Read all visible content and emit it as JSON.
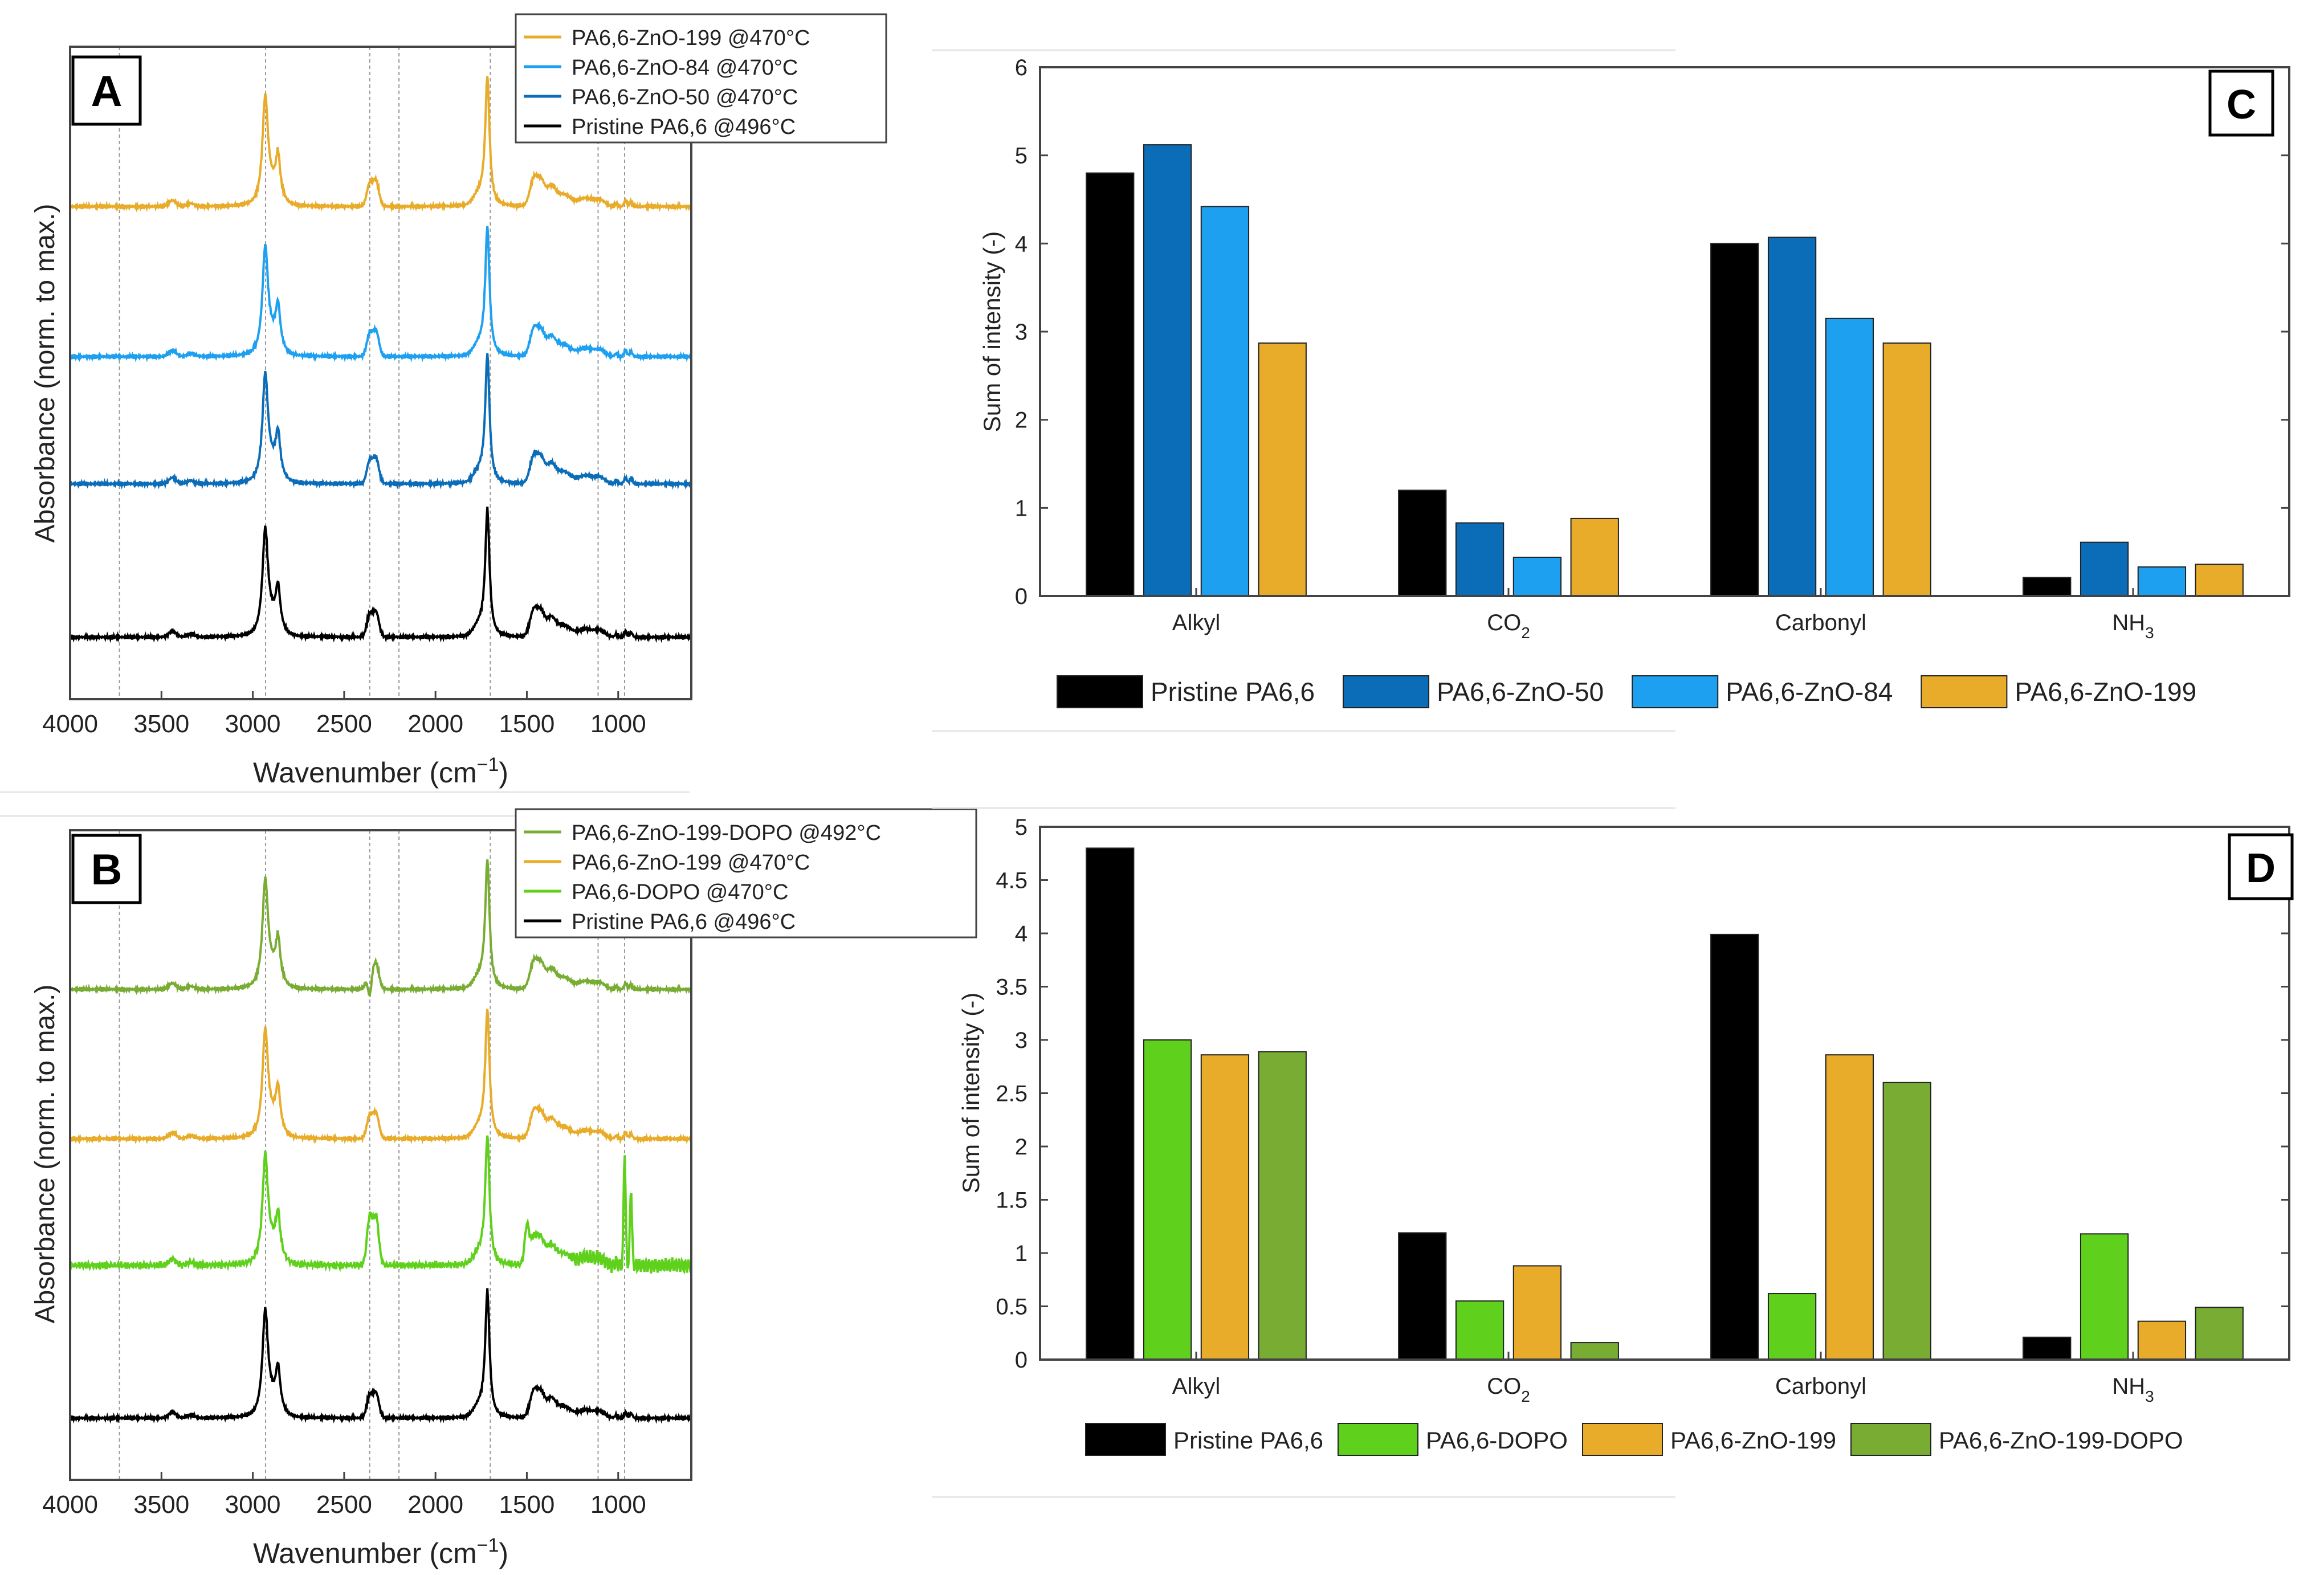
{
  "colors": {
    "black": "#000000",
    "dark_blue": "#0b6cb8",
    "light_blue": "#1ea0f0",
    "orange": "#e8ac2a",
    "bright_green": "#5fd11c",
    "olive_green": "#78ac33",
    "axis": "#444444",
    "guide": "#9a9a9a"
  },
  "chart_data": [
    {
      "panel": "A",
      "type": "line",
      "xlabel": "Wavenumber (cm",
      "xlabel_sup": "−1",
      "xlabel_end": ")",
      "ylabel": "Absorbance (norm. to max.)",
      "xlim": [
        4000,
        600
      ],
      "xticks": [
        "4000",
        "3500",
        "3000",
        "2500",
        "2000",
        "1500",
        "1000"
      ],
      "xtick_values": [
        4000,
        3500,
        3000,
        2500,
        2000,
        1500,
        1000
      ],
      "guide_lines": [
        3730,
        2930,
        2360,
        2200,
        1700,
        1110,
        965
      ],
      "legend": [
        "PA6,6-ZnO-199 @470°C",
        "PA6,6-ZnO-84 @470°C",
        "PA6,6-ZnO-50 @470°C",
        "Pristine PA6,6 @496°C"
      ],
      "series": [
        {
          "name": "PA6,6-ZnO-199 @470°C",
          "color": "#e8ac2a",
          "offset": 3
        },
        {
          "name": "PA6,6-ZnO-84 @470°C",
          "color": "#1ea0f0",
          "offset": 2
        },
        {
          "name": "PA6,6-ZnO-50 @470°C",
          "color": "#0b6cb8",
          "offset": 1
        },
        {
          "name": "Pristine PA6,6 @496°C",
          "color": "#000000",
          "offset": 0
        }
      ]
    },
    {
      "panel": "B",
      "type": "line",
      "xlabel": "Wavenumber (cm",
      "xlabel_sup": "−1",
      "xlabel_end": ")",
      "ylabel": "Absorbance (norm. to max.)",
      "xlim": [
        4000,
        600
      ],
      "xticks": [
        "4000",
        "3500",
        "3000",
        "2500",
        "2000",
        "1500",
        "1000"
      ],
      "xtick_values": [
        4000,
        3500,
        3000,
        2500,
        2000,
        1500,
        1000
      ],
      "guide_lines": [
        3730,
        2930,
        2360,
        2200,
        1700,
        1110,
        965
      ],
      "legend": [
        "PA6,6-ZnO-199-DOPO @492°C",
        "PA6,6-ZnO-199 @470°C",
        "PA6,6-DOPO @470°C",
        "Pristine PA6,6 @496°C"
      ],
      "series": [
        {
          "name": "PA6,6-ZnO-199-DOPO @492°C",
          "color": "#78ac33",
          "offset": 3
        },
        {
          "name": "PA6,6-ZnO-199 @470°C",
          "color": "#e8ac2a",
          "offset": 2
        },
        {
          "name": "PA6,6-DOPO @470°C",
          "color": "#5fd11c",
          "offset": 1
        },
        {
          "name": "Pristine PA6,6 @496°C",
          "color": "#000000",
          "offset": 0
        }
      ]
    },
    {
      "panel": "C",
      "type": "bar",
      "ylabel": "Sum of intensity (-)",
      "ylim": [
        0,
        6
      ],
      "yticks": [
        "0",
        "1",
        "2",
        "3",
        "4",
        "5",
        "6"
      ],
      "ytick_values": [
        0,
        1,
        2,
        3,
        4,
        5,
        6
      ],
      "categories": [
        {
          "label": "Alkyl",
          "sub": ""
        },
        {
          "label": "CO",
          "sub": "2"
        },
        {
          "label": "Carbonyl",
          "sub": ""
        },
        {
          "label": "NH",
          "sub": "3"
        }
      ],
      "series": [
        {
          "name": "Pristine PA6,6",
          "color": "#000000",
          "values": [
            4.8,
            1.2,
            4.0,
            0.21
          ]
        },
        {
          "name": "PA6,6-ZnO-50",
          "color": "#0b6cb8",
          "values": [
            5.12,
            0.83,
            4.07,
            0.61
          ]
        },
        {
          "name": "PA6,6-ZnO-84",
          "color": "#1ea0f0",
          "values": [
            4.42,
            0.44,
            3.15,
            0.33
          ]
        },
        {
          "name": "PA6,6-ZnO-199",
          "color": "#e8ac2a",
          "values": [
            2.87,
            0.88,
            2.87,
            0.36
          ]
        }
      ]
    },
    {
      "panel": "D",
      "type": "bar",
      "ylabel": "Sum of intensity (-)",
      "ylim": [
        0,
        5
      ],
      "yticks": [
        "0",
        "0.5",
        "1",
        "1.5",
        "2",
        "2.5",
        "3",
        "3.5",
        "4",
        "4.5",
        "5"
      ],
      "ytick_values": [
        0,
        0.5,
        1,
        1.5,
        2,
        2.5,
        3,
        3.5,
        4,
        4.5,
        5
      ],
      "categories": [
        {
          "label": "Alkyl",
          "sub": ""
        },
        {
          "label": "CO",
          "sub": "2"
        },
        {
          "label": "Carbonyl",
          "sub": ""
        },
        {
          "label": "NH",
          "sub": "3"
        }
      ],
      "series": [
        {
          "name": "Pristine PA6,6",
          "color": "#000000",
          "values": [
            4.8,
            1.19,
            3.99,
            0.21
          ]
        },
        {
          "name": "PA6,6-DOPO",
          "color": "#5fd11c",
          "values": [
            3.0,
            0.55,
            0.62,
            1.18
          ]
        },
        {
          "name": "PA6,6-ZnO-199",
          "color": "#e8ac2a",
          "values": [
            2.86,
            0.88,
            2.86,
            0.36
          ]
        },
        {
          "name": "PA6,6-ZnO-199-DOPO",
          "color": "#78ac33",
          "values": [
            2.89,
            0.16,
            2.6,
            0.49
          ]
        }
      ]
    }
  ]
}
